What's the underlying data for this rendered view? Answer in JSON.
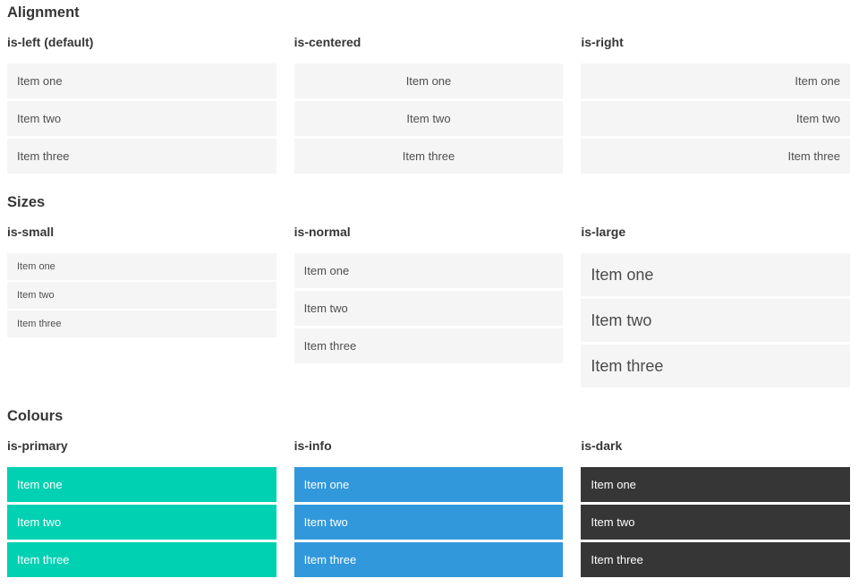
{
  "sections": [
    {
      "title": "Alignment",
      "columns": [
        {
          "heading": "is-left (default)",
          "items": [
            "Item one",
            "Item two",
            "Item three"
          ]
        },
        {
          "heading": "is-centered",
          "items": [
            "Item one",
            "Item two",
            "Item three"
          ]
        },
        {
          "heading": "is-right",
          "items": [
            "Item one",
            "Item two",
            "Item three"
          ]
        }
      ]
    },
    {
      "title": "Sizes",
      "columns": [
        {
          "heading": "is-small",
          "items": [
            "Item one",
            "Item two",
            "Item three"
          ]
        },
        {
          "heading": "is-normal",
          "items": [
            "Item one",
            "Item two",
            "Item three"
          ]
        },
        {
          "heading": "is-large",
          "items": [
            "Item one",
            "Item two",
            "Item three"
          ]
        }
      ]
    },
    {
      "title": "Colours",
      "columns": [
        {
          "heading": "is-primary",
          "items": [
            "Item one",
            "Item two",
            "Item three"
          ]
        },
        {
          "heading": "is-info",
          "items": [
            "Item one",
            "Item two",
            "Item three"
          ]
        },
        {
          "heading": "is-dark",
          "items": [
            "Item one",
            "Item two",
            "Item three"
          ]
        }
      ]
    }
  ],
  "colors": {
    "primary": "#00d1b2",
    "info": "#3298dc",
    "dark": "#363636",
    "item_bg": "#f5f5f5",
    "item_text": "#4f4f4f"
  }
}
